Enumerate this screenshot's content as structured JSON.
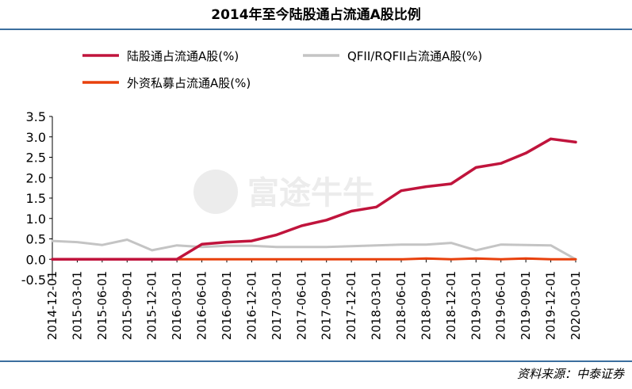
{
  "title": "2014年至今陆股通占流通A股比例",
  "source": "资料来源：中泰证券",
  "watermark": "富途牛牛",
  "colors": {
    "series1": "#c0143c",
    "series2": "#c4c4c4",
    "series3": "#e8400c",
    "rule": "#3b6e9e"
  },
  "chart_data": {
    "type": "line",
    "title": "2014年至今陆股通占流通A股比例",
    "xlabel": "",
    "ylabel": "",
    "ylim": [
      -0.5,
      3.5
    ],
    "yticks": [
      "-0.5",
      "0.0",
      "0.5",
      "1.0",
      "1.5",
      "2.0",
      "2.5",
      "3.0",
      "3.5"
    ],
    "x": [
      "2014-12-01",
      "2015-03-01",
      "2015-06-01",
      "2015-09-01",
      "2015-12-01",
      "2016-03-01",
      "2016-06-01",
      "2016-09-01",
      "2016-12-01",
      "2017-03-01",
      "2017-06-01",
      "2017-09-01",
      "2017-12-01",
      "2018-03-01",
      "2018-06-01",
      "2018-09-01",
      "2018-12-01",
      "2019-03-01",
      "2019-06-01",
      "2019-09-01",
      "2019-12-01",
      "2020-03-01"
    ],
    "legend_position": "top-left",
    "series": [
      {
        "name": "陆股通占流通A股(%)",
        "color": "#c0143c",
        "values": [
          0.0,
          0.0,
          0.0,
          0.0,
          0.0,
          0.0,
          0.37,
          0.42,
          0.45,
          0.6,
          0.82,
          0.96,
          1.18,
          1.28,
          1.68,
          1.78,
          1.85,
          2.25,
          2.35,
          2.6,
          2.95,
          2.87
        ]
      },
      {
        "name": "QFII/RQFII占流通A股(%)",
        "color": "#c4c4c4",
        "values": [
          0.45,
          0.42,
          0.35,
          0.48,
          0.22,
          0.34,
          0.3,
          0.33,
          0.33,
          0.3,
          0.3,
          0.3,
          0.32,
          0.34,
          0.36,
          0.36,
          0.4,
          0.22,
          0.36,
          0.35,
          0.34,
          0.0
        ]
      },
      {
        "name": "外资私募占流通A股(%)",
        "color": "#e8400c",
        "values": [
          0.0,
          0.0,
          0.0,
          0.0,
          0.0,
          0.0,
          0.0,
          0.0,
          0.0,
          0.0,
          0.0,
          0.0,
          0.0,
          0.0,
          0.0,
          0.02,
          0.0,
          0.02,
          0.0,
          0.02,
          0.0,
          0.0
        ]
      }
    ]
  }
}
